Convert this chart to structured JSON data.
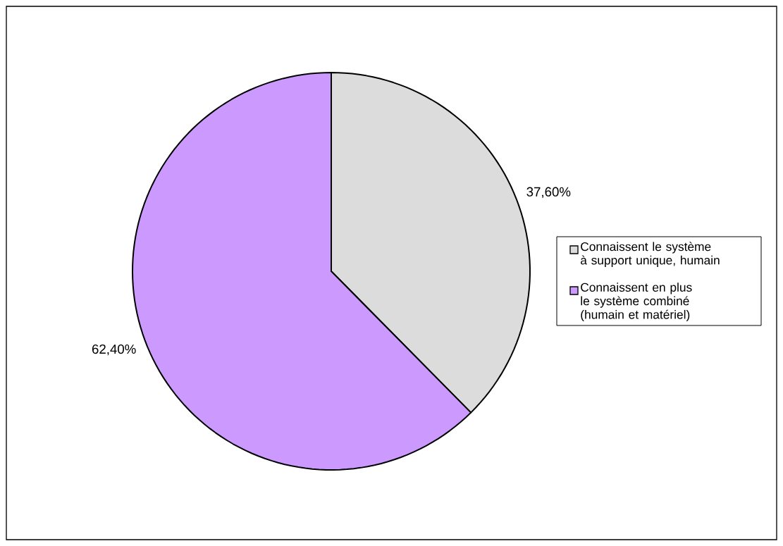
{
  "chart_data": {
    "type": "pie",
    "categories": [
      "Connaissent le système à support unique, humain",
      "Connaissent en plus le système combiné (humain et matériel)"
    ],
    "values": [
      37.6,
      62.4
    ],
    "colors": [
      "#dcdcdc",
      "#cc99ff"
    ],
    "value_labels": [
      "37,60%",
      "62,40%"
    ],
    "legend": "right"
  }
}
